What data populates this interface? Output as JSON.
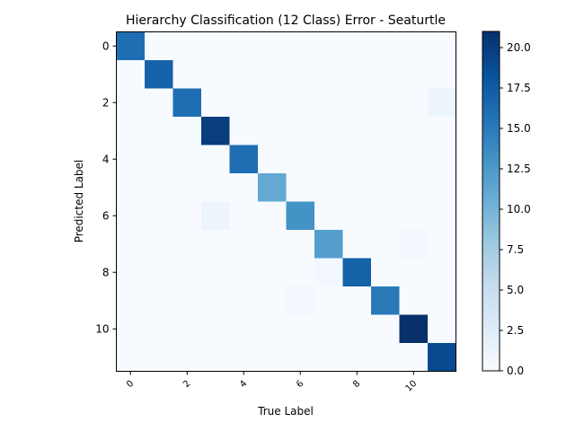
{
  "chart_data": {
    "type": "heatmap",
    "title": "Hierarchy Classification (12 Class) Error - Seaturtle",
    "xlabel": "True Label",
    "ylabel": "Predicted Label",
    "x_categories": [
      0,
      1,
      2,
      3,
      4,
      5,
      6,
      7,
      8,
      9,
      10,
      11
    ],
    "y_categories": [
      0,
      1,
      2,
      3,
      4,
      5,
      6,
      7,
      8,
      9,
      10,
      11
    ],
    "x_tick_labels": [
      "0",
      "2",
      "4",
      "6",
      "8",
      "10"
    ],
    "y_tick_labels": [
      "0",
      "2",
      "4",
      "6",
      "8",
      "10"
    ],
    "matrix": [
      [
        16,
        0,
        0,
        0,
        0,
        0,
        0,
        0,
        0,
        0,
        0,
        0
      ],
      [
        0,
        17,
        0,
        0,
        0,
        0,
        0,
        0,
        0,
        0,
        0,
        0
      ],
      [
        0,
        0,
        16,
        0,
        0,
        0,
        0,
        0,
        0,
        0,
        0,
        1
      ],
      [
        0,
        0,
        0,
        20,
        0,
        0,
        0,
        0,
        0,
        0,
        0,
        0
      ],
      [
        0,
        0,
        0,
        0,
        16,
        0,
        0,
        0,
        0,
        0,
        0,
        0
      ],
      [
        0,
        0,
        0,
        0,
        0,
        11,
        0,
        0,
        0,
        0,
        0,
        0
      ],
      [
        0,
        0,
        0,
        1,
        0,
        0,
        13,
        0,
        0,
        0,
        0,
        0
      ],
      [
        0,
        0,
        0,
        0,
        0,
        0,
        0,
        12,
        0,
        0,
        0.5,
        0
      ],
      [
        0,
        0,
        0,
        0,
        0,
        0,
        0,
        0.5,
        17,
        0,
        0,
        0
      ],
      [
        0,
        0,
        0,
        0,
        0,
        0,
        0.5,
        0,
        0,
        15,
        0,
        0
      ],
      [
        0,
        0,
        0,
        0,
        0,
        0,
        0,
        0,
        0,
        0,
        21,
        0
      ],
      [
        0,
        0,
        0,
        0,
        0,
        0,
        0,
        0,
        0,
        0,
        0,
        19
      ]
    ],
    "colorbar": {
      "colormap": "Blues",
      "min": 0,
      "max": 21,
      "ticks": [
        0.0,
        2.5,
        5.0,
        7.5,
        10.0,
        12.5,
        15.0,
        17.5,
        20.0
      ],
      "tick_labels": [
        "0.0",
        "2.5",
        "5.0",
        "7.5",
        "10.0",
        "12.5",
        "15.0",
        "17.5",
        "20.0"
      ]
    }
  }
}
